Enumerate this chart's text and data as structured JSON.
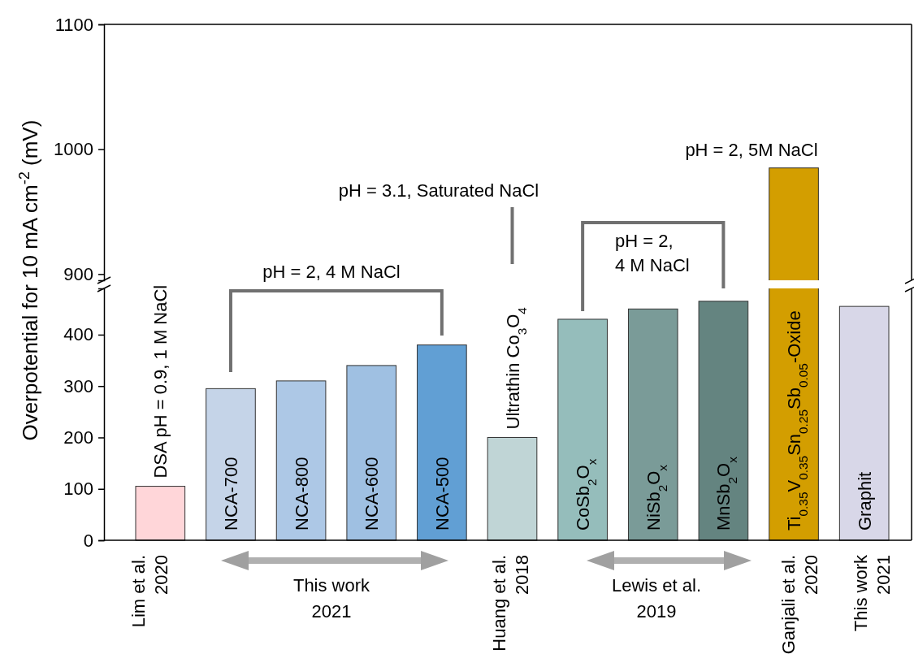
{
  "chart_data": [
    {
      "type": "bar",
      "categories": [
        null,
        null,
        null,
        null,
        null,
        null,
        null,
        null,
        null,
        null,
        null
      ],
      "values": [
        null,
        null,
        null,
        null,
        null,
        null,
        null,
        null,
        null,
        985,
        null
      ],
      "color": "#d39e00",
      "ylim": [
        895,
        1100
      ],
      "yticks": [
        900,
        1000,
        1100
      ]
    },
    {
      "type": "bar",
      "categories": [
        "DSA  pH = 0.9, 1 M NaCl",
        "NCA-700",
        "NCA-800",
        "NCA-600",
        "NCA-500",
        "Ultrathin Co$_{3}$O$_{4}$",
        "CoSb$_{2}$O$_{x}$",
        "NiSb$_{2}$O$_{x}$",
        "MnSb$_{2}$O$_{x}$",
        "Ti$_{0.35}$V$_{0.35}$Sn$_{0.25}$Sb$_{0.05}$-Oxide",
        "Graphit"
      ],
      "values": [
        105,
        295,
        310,
        340,
        380,
        200,
        430,
        450,
        465,
        null,
        455
      ],
      "colors": [
        "#ffd6d9",
        "#c5d4e8",
        "#adc8e6",
        "#9fc0e2",
        "#619fd4",
        "#c0d5d6",
        "#95bdbb",
        "#7a9b98",
        "#648480",
        null,
        "#d8d7e8"
      ],
      "ylim": [
        0,
        490
      ],
      "yticks": [
        0,
        100,
        200,
        300,
        400
      ],
      "ylabel": "Overpotential for 10 mA cm$^{-2}$ (mV)",
      "annotations": [
        "pH = 2, 4 M NaCl",
        "pH = 3.1, Saturated NaCl",
        "pH = 2,\n4 M NaCl",
        "pH = 2, 5M NaCl",
        "Lim et al.\n2020",
        "This work\n2021",
        "Huang et al.\n2018",
        "Lewis et al.\n2019",
        "Ganjali et al.\n2020",
        "This work\n2021"
      ]
    }
  ]
}
